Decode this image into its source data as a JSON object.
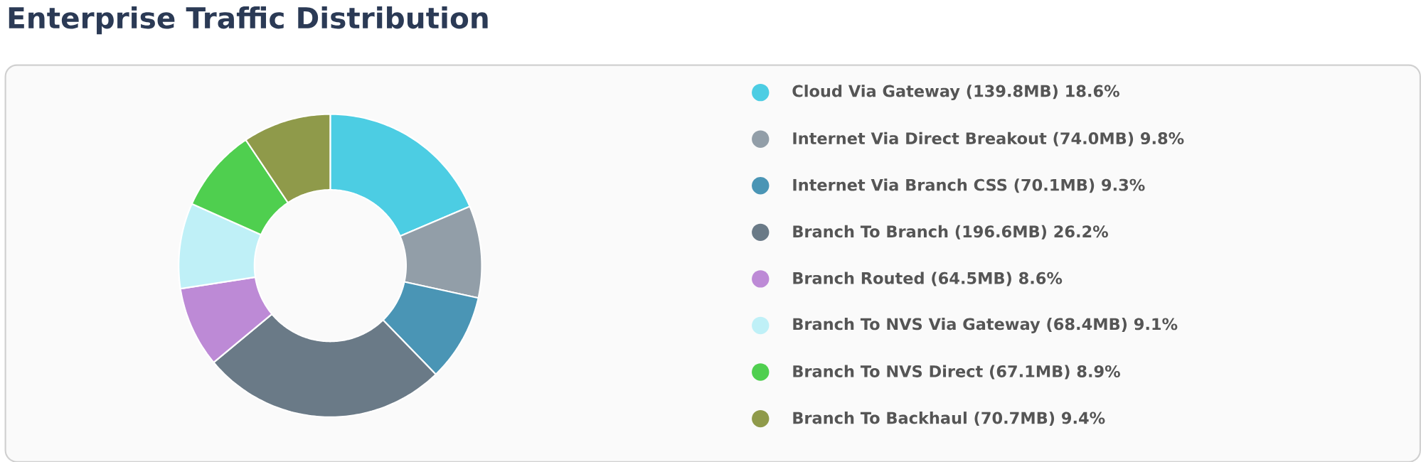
{
  "chart_data": {
    "type": "donut",
    "title": "Enterprise Traffic Distribution",
    "categories": [
      "Cloud Via Gateway (139.8MB) 18.6%",
      "Internet Via Direct Breakout (74.0MB) 9.8%",
      "Internet Via Branch CSS (70.1MB) 9.3%",
      "Branch To Branch (196.6MB) 26.2%",
      "Branch Routed (64.5MB) 8.6%",
      "Branch To NVS Via Gateway (68.4MB) 9.1%",
      "Branch To NVS Direct (67.1MB) 8.9%",
      "Branch To Backhaul (70.7MB) 9.4%"
    ],
    "values": [
      18.6,
      9.8,
      9.3,
      26.2,
      8.6,
      9.1,
      8.9,
      9.4
    ],
    "colors": [
      "#4ccde3",
      "#929ea8",
      "#4a95b5",
      "#6a7a87",
      "#bd8ad6",
      "#bff0f7",
      "#4fcf4f",
      "#8f9a4a"
    ],
    "legend": "right"
  }
}
